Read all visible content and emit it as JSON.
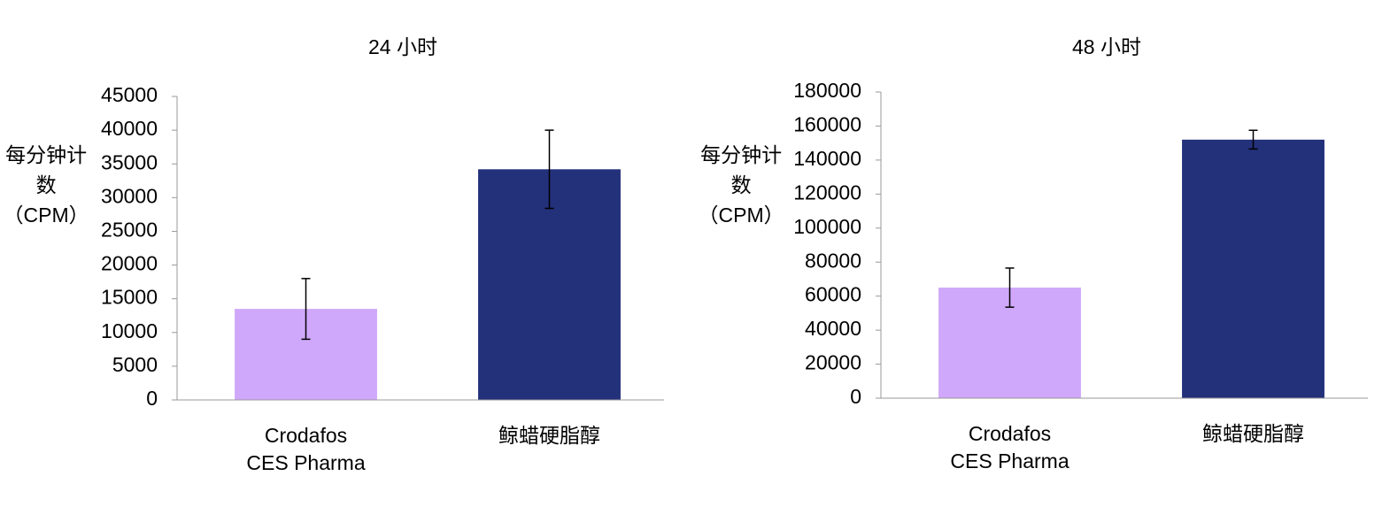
{
  "chart_data": [
    {
      "type": "bar",
      "title": "24 小时",
      "y_label": "每分钟计数（CPM）",
      "categories": [
        "Crodafos\nCES Pharma",
        "鲸蜡硬脂醇"
      ],
      "values": [
        13500,
        34200
      ],
      "errors": [
        4500,
        5800
      ],
      "colors": [
        "#cfa8fb",
        "#23307a"
      ],
      "ylim": [
        0,
        45000
      ],
      "yticks": [
        0,
        5000,
        10000,
        15000,
        20000,
        25000,
        30000,
        35000,
        40000,
        45000
      ]
    },
    {
      "type": "bar",
      "title": "48 小时",
      "y_label": "每分钟计数（CPM）",
      "categories": [
        "Crodafos\nCES Pharma",
        "鲸蜡硬脂醇"
      ],
      "values": [
        65000,
        152000
      ],
      "errors": [
        11500,
        5500
      ],
      "colors": [
        "#cfa8fb",
        "#23307a"
      ],
      "ylim": [
        0,
        180000
      ],
      "yticks": [
        0,
        20000,
        40000,
        60000,
        80000,
        100000,
        120000,
        140000,
        160000,
        180000
      ]
    }
  ]
}
